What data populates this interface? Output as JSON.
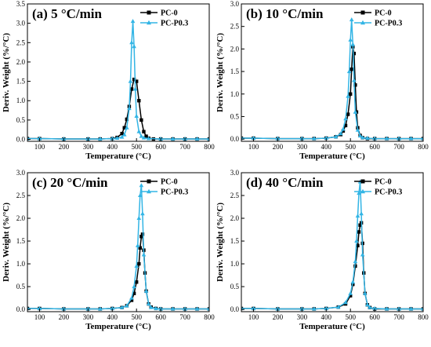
{
  "colors": {
    "PC-0": "#000000",
    "PC-P0.3": "#33b5e5"
  },
  "chart_data": [
    {
      "type": "line",
      "title": "(a) 5 °C/min",
      "xlabel": "Temperature (°C)",
      "ylabel": "Deriv. Weight (%/°C)",
      "xlim": [
        50,
        800
      ],
      "ylim": [
        -0.05,
        3.5
      ],
      "xticks": [
        100,
        200,
        300,
        400,
        500,
        600,
        700,
        800
      ],
      "yticks": [
        0.0,
        0.5,
        1.0,
        1.5,
        2.0,
        2.5,
        3.0,
        3.5
      ],
      "legend": "top-right",
      "series": [
        {
          "name": "PC-0",
          "marker": "square",
          "x": [
            50,
            100,
            200,
            300,
            350,
            400,
            420,
            440,
            450,
            460,
            470,
            480,
            490,
            500,
            510,
            520,
            530,
            540,
            550,
            570,
            600,
            650,
            700,
            750,
            800
          ],
          "y": [
            0.02,
            0.02,
            0.01,
            0.01,
            0.01,
            0.02,
            0.05,
            0.15,
            0.3,
            0.52,
            0.85,
            1.3,
            1.55,
            1.5,
            1.0,
            0.5,
            0.2,
            0.08,
            0.03,
            0.01,
            0.01,
            0.01,
            0.01,
            0.01,
            0.01
          ]
        },
        {
          "name": "PC-P0.3",
          "marker": "triangle",
          "x": [
            50,
            100,
            200,
            300,
            350,
            400,
            420,
            440,
            450,
            460,
            470,
            475,
            480,
            485,
            490,
            495,
            500,
            510,
            520,
            530,
            550,
            600,
            650,
            700,
            750,
            800
          ],
          "y": [
            0.02,
            0.02,
            0.01,
            0.01,
            0.01,
            0.02,
            0.03,
            0.06,
            0.12,
            0.3,
            0.8,
            1.5,
            2.5,
            3.05,
            2.4,
            1.3,
            0.6,
            0.2,
            0.08,
            0.04,
            0.02,
            0.01,
            0.01,
            0.01,
            0.01,
            0.01
          ]
        }
      ]
    },
    {
      "type": "line",
      "title": "(b) 10 °C/min",
      "xlabel": "Temperature (°C)",
      "ylabel": "Deriv. Weight (%/°C)",
      "xlim": [
        50,
        800
      ],
      "ylim": [
        -0.05,
        3.0
      ],
      "xticks": [
        100,
        200,
        300,
        400,
        500,
        600,
        700,
        800
      ],
      "yticks": [
        0.0,
        0.5,
        1.0,
        1.5,
        2.0,
        2.5,
        3.0
      ],
      "legend": "top-right",
      "series": [
        {
          "name": "PC-0",
          "marker": "square",
          "x": [
            50,
            100,
            200,
            300,
            350,
            400,
            440,
            460,
            470,
            480,
            490,
            500,
            505,
            510,
            515,
            520,
            525,
            530,
            540,
            550,
            570,
            600,
            650,
            700,
            750,
            800
          ],
          "y": [
            0.02,
            0.02,
            0.01,
            0.01,
            0.01,
            0.02,
            0.05,
            0.1,
            0.18,
            0.3,
            0.55,
            1.0,
            1.55,
            2.05,
            1.9,
            1.2,
            0.6,
            0.25,
            0.08,
            0.03,
            0.01,
            0.01,
            0.01,
            0.01,
            0.01,
            0.01
          ]
        },
        {
          "name": "PC-P0.3",
          "marker": "triangle",
          "x": [
            50,
            100,
            200,
            300,
            350,
            400,
            440,
            460,
            470,
            480,
            490,
            495,
            500,
            505,
            510,
            515,
            520,
            530,
            540,
            550,
            570,
            600,
            650,
            700,
            750,
            800
          ],
          "y": [
            0.02,
            0.02,
            0.01,
            0.01,
            0.01,
            0.02,
            0.05,
            0.12,
            0.22,
            0.45,
            0.95,
            1.5,
            2.2,
            2.65,
            2.1,
            1.3,
            0.6,
            0.2,
            0.07,
            0.03,
            0.02,
            0.01,
            0.01,
            0.01,
            0.01,
            0.01
          ]
        }
      ]
    },
    {
      "type": "line",
      "title": "(c) 20 °C/min",
      "xlabel": "Temperature (°C)",
      "ylabel": "Deriv. Weight (%/°C)",
      "xlim": [
        50,
        800
      ],
      "ylim": [
        -0.05,
        3.0
      ],
      "xticks": [
        100,
        200,
        300,
        400,
        500,
        600,
        700,
        800
      ],
      "yticks": [
        0.0,
        0.5,
        1.0,
        1.5,
        2.0,
        2.5,
        3.0
      ],
      "legend": "top-right",
      "series": [
        {
          "name": "PC-0",
          "marker": "square",
          "x": [
            50,
            100,
            200,
            300,
            350,
            400,
            440,
            460,
            480,
            490,
            500,
            510,
            515,
            520,
            525,
            530,
            535,
            540,
            550,
            560,
            580,
            600,
            650,
            700,
            750,
            800
          ],
          "y": [
            0.02,
            0.02,
            0.01,
            0.01,
            0.01,
            0.02,
            0.04,
            0.08,
            0.2,
            0.35,
            0.6,
            1.0,
            1.35,
            1.6,
            1.65,
            1.3,
            0.8,
            0.4,
            0.12,
            0.05,
            0.02,
            0.01,
            0.01,
            0.01,
            0.01,
            0.01
          ]
        },
        {
          "name": "PC-P0.3",
          "marker": "triangle",
          "x": [
            50,
            100,
            200,
            300,
            350,
            400,
            440,
            460,
            480,
            490,
            500,
            505,
            510,
            515,
            520,
            525,
            530,
            540,
            550,
            560,
            580,
            600,
            650,
            700,
            750,
            800
          ],
          "y": [
            0.02,
            0.02,
            0.01,
            0.01,
            0.01,
            0.02,
            0.04,
            0.08,
            0.25,
            0.5,
            0.95,
            1.4,
            2.0,
            2.5,
            2.72,
            2.1,
            1.2,
            0.4,
            0.12,
            0.04,
            0.02,
            0.01,
            0.01,
            0.01,
            0.01,
            0.01
          ]
        }
      ]
    },
    {
      "type": "line",
      "title": "(d) 40 °C/min",
      "xlabel": "Temperature (°C)",
      "ylabel": "Deriv. Weight (%/°C)",
      "xlim": [
        50,
        800
      ],
      "ylim": [
        -0.05,
        3.0
      ],
      "xticks": [
        100,
        200,
        300,
        400,
        500,
        600,
        700,
        800
      ],
      "yticks": [
        0.0,
        0.5,
        1.0,
        1.5,
        2.0,
        2.5,
        3.0
      ],
      "legend": "top-right",
      "series": [
        {
          "name": "PC-0",
          "marker": "square",
          "x": [
            50,
            100,
            200,
            300,
            350,
            400,
            450,
            480,
            500,
            510,
            520,
            530,
            535,
            540,
            545,
            550,
            555,
            560,
            570,
            580,
            600,
            650,
            700,
            750,
            800
          ],
          "y": [
            0.02,
            0.02,
            0.01,
            0.01,
            0.01,
            0.02,
            0.05,
            0.12,
            0.3,
            0.55,
            0.95,
            1.4,
            1.7,
            1.85,
            1.9,
            1.45,
            0.8,
            0.35,
            0.1,
            0.04,
            0.01,
            0.01,
            0.01,
            0.01,
            0.01
          ]
        },
        {
          "name": "PC-P0.3",
          "marker": "triangle",
          "x": [
            50,
            100,
            200,
            300,
            350,
            400,
            450,
            480,
            500,
            510,
            520,
            525,
            530,
            535,
            540,
            545,
            550,
            560,
            570,
            580,
            600,
            650,
            700,
            750,
            800
          ],
          "y": [
            0.02,
            0.02,
            0.01,
            0.01,
            0.01,
            0.02,
            0.05,
            0.15,
            0.35,
            0.6,
            1.05,
            1.5,
            2.05,
            2.55,
            2.8,
            2.1,
            1.2,
            0.35,
            0.1,
            0.04,
            0.02,
            0.01,
            0.01,
            0.01,
            0.01
          ]
        }
      ]
    }
  ]
}
